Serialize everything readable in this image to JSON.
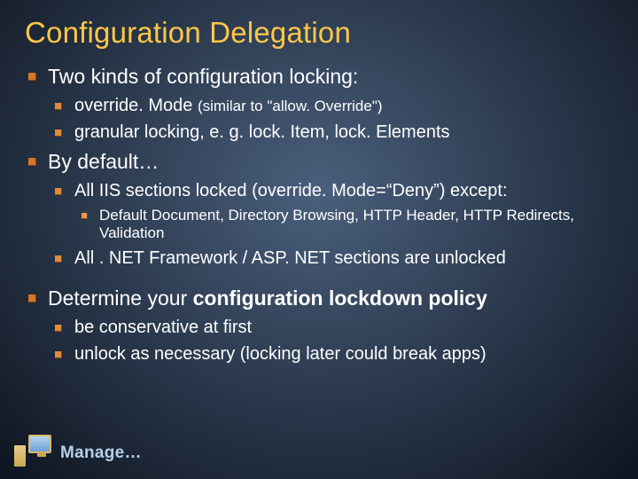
{
  "title": "Configuration Delegation",
  "bullets": {
    "b1": "Two kinds of configuration locking:",
    "b1_1": "override. Mode ",
    "b1_1_suffix": "(similar to \"allow. Override\")",
    "b1_2": "granular locking, e. g. lock. Item, lock. Elements",
    "b2": "By default…",
    "b2_1": "All IIS sections locked (override. Mode=“Deny”) except:",
    "b2_1_1": "Default Document, Directory Browsing, HTTP Header, HTTP Redirects, Validation",
    "b2_2": "All . NET Framework / ASP. NET sections are unlocked",
    "b3_pre": "Determine your ",
    "b3_bold": "configuration lockdown policy",
    "b3_1": "be conservative at first",
    "b3_2": "unlock as necessary (locking later could break apps)"
  },
  "footer": "Manage…",
  "colors": {
    "title": "#ffc846",
    "bullet_square": "#d97528",
    "footer_text": "#b7cfe8"
  }
}
